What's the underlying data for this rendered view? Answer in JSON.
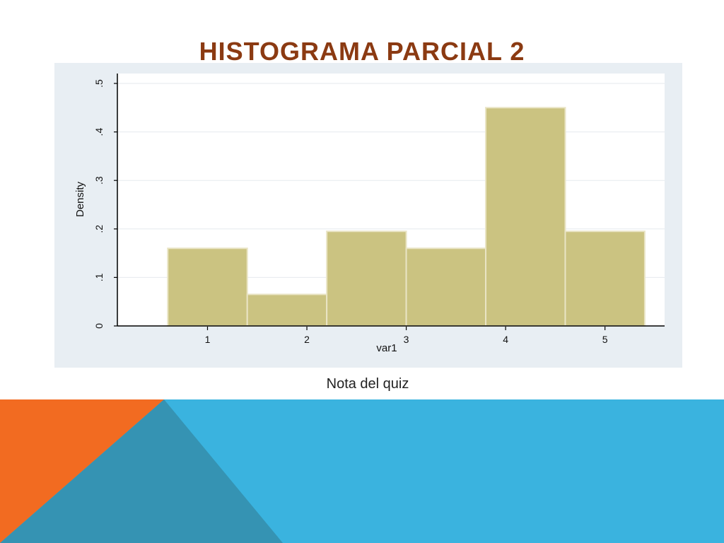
{
  "slide": {
    "title": "HISTOGRAMA PARCIAL 2",
    "caption": "Nota del quiz"
  },
  "colors": {
    "title": "#8b3a12",
    "bar_fill": "#cbc381",
    "bar_stroke": "#e9e4c4",
    "chart_bg": "#e8eef3",
    "footer_orange": "#f26b21",
    "footer_blue": "#3ab3df",
    "footer_teal": "#3593b3"
  },
  "chart_data": {
    "type": "bar",
    "title": "",
    "xlabel": "var1",
    "ylabel": "Density",
    "bins": [
      {
        "start": 0.6,
        "end": 1.4,
        "value": 0.16
      },
      {
        "start": 1.4,
        "end": 2.2,
        "value": 0.065
      },
      {
        "start": 2.2,
        "end": 3.0,
        "value": 0.195
      },
      {
        "start": 3.0,
        "end": 3.8,
        "value": 0.16
      },
      {
        "start": 3.8,
        "end": 4.6,
        "value": 0.45
      },
      {
        "start": 4.6,
        "end": 5.4,
        "value": 0.195
      }
    ],
    "xticks": [
      1,
      2,
      3,
      4,
      5
    ],
    "xtick_labels": [
      "1",
      "2",
      "3",
      "4",
      "5"
    ],
    "yticks": [
      0,
      0.1,
      0.2,
      0.3,
      0.4,
      0.5
    ],
    "ytick_labels": [
      "0",
      ".1",
      ".2",
      ".3",
      ".4",
      ".5"
    ],
    "xlim": [
      0.1,
      5.6
    ],
    "ylim": [
      0,
      0.5
    ],
    "grid": true
  }
}
